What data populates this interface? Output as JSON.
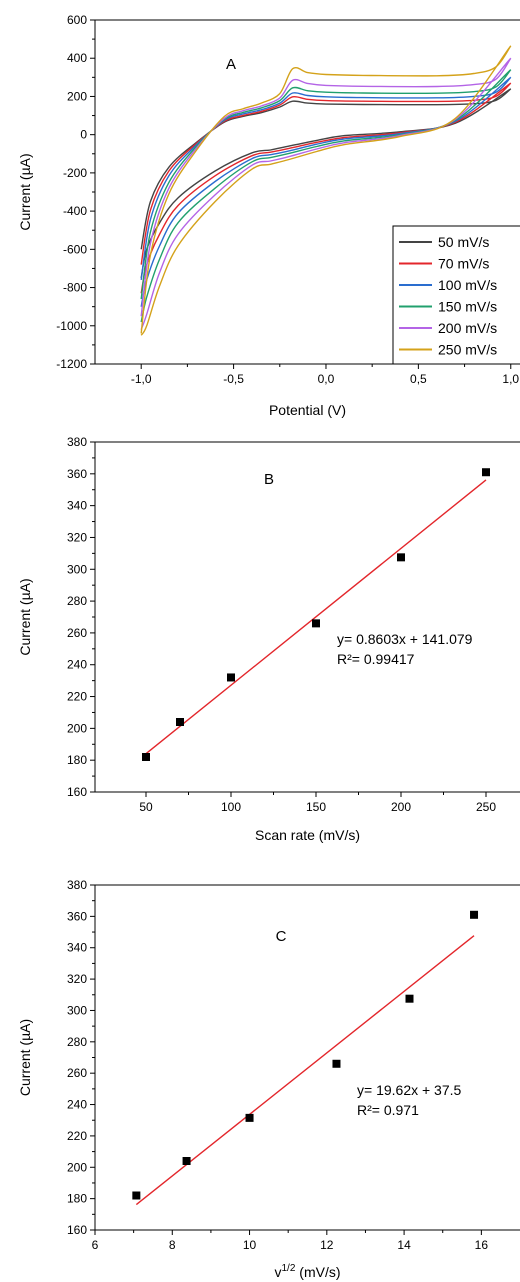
{
  "chart_data": [
    {
      "panel": "A",
      "type": "line",
      "panel_label": "A",
      "xlabel": "Potential (V)",
      "ylabel": "Current (µA)",
      "xlim": [
        -1.25,
        1.05
      ],
      "ylim": [
        -1200,
        600
      ],
      "xticks": [
        -1.0,
        -0.5,
        0.0,
        0.5,
        1.0
      ],
      "xtick_labels": [
        "-1,0",
        "-0,5",
        "0,0",
        "0,5",
        "1,0"
      ],
      "yticks": [
        -1200,
        -1000,
        -800,
        -600,
        -400,
        -200,
        0,
        200,
        400,
        600
      ],
      "ytick_labels": [
        "-1200",
        "-1000",
        "-800",
        "-600",
        "-400",
        "-200",
        "0",
        "200",
        "400",
        "600"
      ],
      "legend_position": "bottom-right",
      "series": [
        {
          "name": "50 mV/s",
          "color": "#444444",
          "anodic_y": [
            -600,
            -350,
            -170,
            -40,
            65,
            95,
            115,
            145,
            175,
            165,
            160,
            158,
            157,
            162,
            180,
            240
          ],
          "cathodic_y": [
            240,
            60,
            15,
            -5,
            -30,
            -60,
            -80,
            -95,
            -190,
            -330,
            -460,
            -600,
            -750
          ]
        },
        {
          "name": "70 mV/s",
          "color": "#e3262b",
          "anodic_y": [
            -680,
            -395,
            -190,
            -45,
            70,
            100,
            122,
            155,
            198,
            185,
            178,
            175,
            174,
            180,
            200,
            270
          ],
          "cathodic_y": [
            270,
            65,
            10,
            -15,
            -40,
            -72,
            -92,
            -110,
            -215,
            -370,
            -520,
            -680,
            -830
          ]
        },
        {
          "name": "100 mV/s",
          "color": "#2a6dcf",
          "anodic_y": [
            -760,
            -445,
            -215,
            -52,
            75,
            108,
            130,
            165,
            218,
            205,
            198,
            194,
            193,
            200,
            222,
            300
          ],
          "cathodic_y": [
            300,
            70,
            5,
            -22,
            -50,
            -85,
            -105,
            -125,
            -245,
            -410,
            -580,
            -760,
            -900
          ]
        },
        {
          "name": "150 mV/s",
          "color": "#21a06e",
          "anodic_y": [
            -860,
            -510,
            -250,
            -60,
            80,
            116,
            140,
            178,
            245,
            230,
            222,
            218,
            217,
            225,
            250,
            340
          ],
          "cathodic_y": [
            340,
            75,
            0,
            -32,
            -62,
            -98,
            -120,
            -142,
            -280,
            -460,
            -650,
            -850,
            -980
          ]
        },
        {
          "name": "200 mV/s",
          "color": "#b464e6",
          "anodic_y": [
            -950,
            -570,
            -280,
            -70,
            85,
            125,
            150,
            192,
            285,
            268,
            258,
            253,
            252,
            262,
            290,
            400
          ],
          "cathodic_y": [
            400,
            80,
            -5,
            -42,
            -75,
            -115,
            -138,
            -160,
            -315,
            -520,
            -720,
            -940,
            -1020
          ]
        },
        {
          "name": "250 mV/s",
          "color": "#d4a21a",
          "anodic_y": [
            -1040,
            -630,
            -310,
            -80,
            95,
            135,
            165,
            215,
            345,
            325,
            315,
            310,
            308,
            320,
            355,
            465
          ],
          "cathodic_y": [
            465,
            85,
            -10,
            -52,
            -88,
            -130,
            -155,
            -180,
            -350,
            -580,
            -790,
            -1000,
            -1050
          ]
        }
      ],
      "anodic_x": [
        -1.0,
        -0.95,
        -0.85,
        -0.7,
        -0.55,
        -0.45,
        -0.35,
        -0.25,
        -0.18,
        -0.1,
        0.0,
        0.2,
        0.6,
        0.8,
        0.92,
        1.0
      ],
      "cathodic_x": [
        1.0,
        0.7,
        0.4,
        0.1,
        -0.05,
        -0.2,
        -0.3,
        -0.4,
        -0.6,
        -0.8,
        -0.9,
        -0.97,
        -1.0
      ]
    },
    {
      "panel": "B",
      "type": "scatter",
      "panel_label": "B",
      "xlabel": "Scan rate (mV/s)",
      "ylabel": "Current (µA)",
      "xlim": [
        20,
        270
      ],
      "ylim": [
        160,
        380
      ],
      "xticks": [
        50,
        100,
        150,
        200,
        250
      ],
      "xtick_labels": [
        "50",
        "100",
        "150",
        "200",
        "250"
      ],
      "yticks": [
        160,
        180,
        200,
        220,
        240,
        260,
        280,
        300,
        320,
        340,
        360,
        380
      ],
      "ytick_labels": [
        "160",
        "180",
        "200",
        "220",
        "240",
        "260",
        "280",
        "300",
        "320",
        "340",
        "360",
        "380"
      ],
      "x": [
        50,
        70,
        100,
        150,
        200,
        250
      ],
      "y": [
        182,
        204,
        232,
        266,
        307.5,
        361
      ],
      "fit": {
        "slope": 0.8603,
        "intercept": 141.079,
        "x_range": [
          50,
          250
        ],
        "color": "#e3262b"
      },
      "equation_text": "y= 0.8603x + 141.079",
      "r2_text": "R²= 0.99417"
    },
    {
      "panel": "C",
      "type": "scatter",
      "panel_label": "C",
      "xlabel": "v",
      "xlabel_sup": "1/2",
      "xlabel_unit": " (mV/s)",
      "ylabel": "Current (µA)",
      "xlim": [
        6,
        17
      ],
      "ylim": [
        160,
        380
      ],
      "xticks": [
        6,
        8,
        10,
        12,
        14,
        16
      ],
      "xtick_labels": [
        "6",
        "8",
        "10",
        "12",
        "14",
        "16"
      ],
      "yticks": [
        160,
        180,
        200,
        220,
        240,
        260,
        280,
        300,
        320,
        340,
        360,
        380
      ],
      "ytick_labels": [
        "160",
        "180",
        "200",
        "220",
        "240",
        "260",
        "280",
        "300",
        "320",
        "340",
        "360",
        "380"
      ],
      "x": [
        7.07,
        8.37,
        10.0,
        12.25,
        14.14,
        15.81
      ],
      "y": [
        182,
        204,
        231.5,
        266,
        307.5,
        361
      ],
      "fit": {
        "slope": 19.62,
        "intercept": 37.5,
        "x_range": [
          7.07,
          15.81
        ],
        "color": "#e3262b"
      },
      "equation_text": "y= 19.62x + 37.5",
      "r2_text": "R²= 0.971"
    }
  ]
}
